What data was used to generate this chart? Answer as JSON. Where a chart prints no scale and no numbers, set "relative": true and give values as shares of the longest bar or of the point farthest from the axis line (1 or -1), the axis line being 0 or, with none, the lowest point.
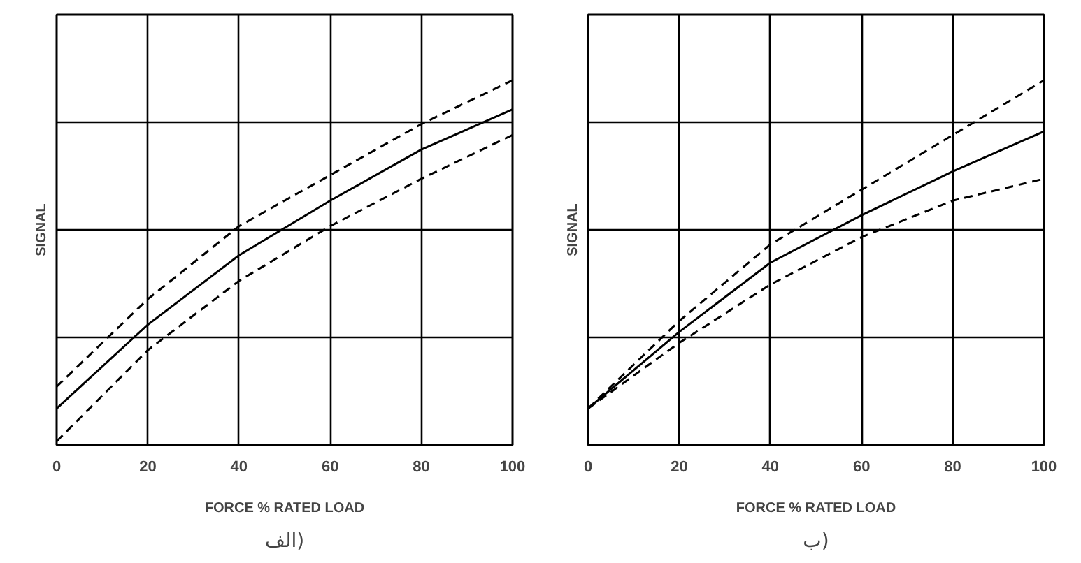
{
  "chart_data": [
    {
      "type": "line",
      "xlabel": "FORCE % RATED LOAD",
      "ylabel": "SIGNAL",
      "relative": true,
      "x": [
        0,
        20,
        40,
        60,
        80,
        100
      ],
      "xlim": [
        0,
        100
      ],
      "xticks": [
        0,
        20,
        40,
        60,
        80,
        100
      ],
      "grid": true,
      "marker": "none",
      "annotations": [
        "الف)"
      ],
      "series": [
        {
          "color": "#000000",
          "line_style": "dashed",
          "values": [
            0.16,
            0.4,
            0.6,
            0.74,
            0.88,
            1.0
          ]
        },
        {
          "color": "#000000",
          "line_style": "solid",
          "values": [
            0.1,
            0.33,
            0.52,
            0.67,
            0.81,
            0.92
          ]
        },
        {
          "color": "#000000",
          "line_style": "dashed",
          "values": [
            0.01,
            0.26,
            0.45,
            0.6,
            0.73,
            0.85
          ]
        }
      ]
    },
    {
      "type": "line",
      "xlabel": "FORCE % RATED LOAD",
      "ylabel": "SIGNAL",
      "relative": true,
      "x": [
        0,
        20,
        40,
        60,
        80,
        100
      ],
      "xlim": [
        0,
        100
      ],
      "xticks": [
        0,
        20,
        40,
        60,
        80,
        100
      ],
      "grid": true,
      "marker": "none",
      "annotations": [
        "ب)"
      ],
      "series": [
        {
          "color": "#000000",
          "line_style": "dashed",
          "values": [
            0.1,
            0.34,
            0.55,
            0.7,
            0.85,
            1.0
          ]
        },
        {
          "color": "#000000",
          "line_style": "solid",
          "values": [
            0.1,
            0.31,
            0.5,
            0.63,
            0.75,
            0.86
          ]
        },
        {
          "color": "#000000",
          "line_style": "dashed",
          "values": [
            0.1,
            0.28,
            0.44,
            0.57,
            0.67,
            0.73
          ]
        }
      ]
    }
  ]
}
